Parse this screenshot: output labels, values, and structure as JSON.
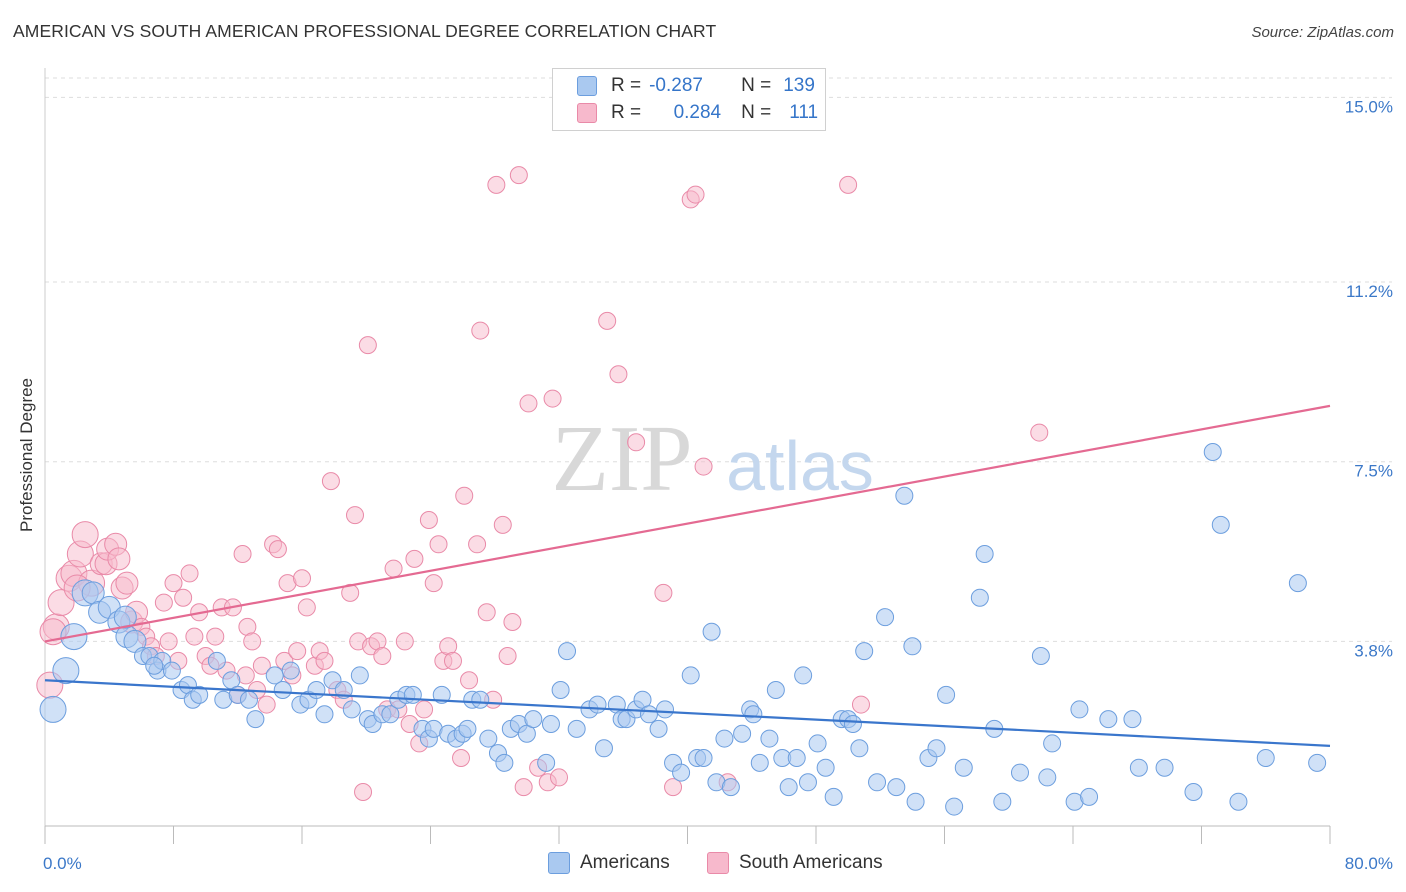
{
  "title": "AMERICAN VS SOUTH AMERICAN PROFESSIONAL DEGREE CORRELATION CHART",
  "source": "Source: ZipAtlas.com",
  "watermark": {
    "zip": "ZIP",
    "atlas": "atlas"
  },
  "legend": {
    "row1": {
      "r_label": "R =",
      "r_value": "-0.287",
      "n_label": "N =",
      "n_value": "139"
    },
    "row2": {
      "r_label": "R =",
      "r_value": "0.284",
      "n_label": "N =",
      "n_value": "111"
    }
  },
  "colors": {
    "blue_fill": "#aac9f0",
    "blue_stroke": "#6c9ede",
    "blue_line": "#3a76cc",
    "pink_fill": "#f7b9cc",
    "pink_stroke": "#e98aa8",
    "pink_line": "#e46a92",
    "tick_text": "#3b78c8",
    "grid": "#dddddd"
  },
  "chart_data": {
    "type": "scatter",
    "title": "AMERICAN VS SOUTH AMERICAN PROFESSIONAL DEGREE CORRELATION CHART",
    "xlabel": "",
    "ylabel": "Professional Degree",
    "xlim": [
      0,
      80
    ],
    "ylim": [
      0,
      15.4
    ],
    "x_tick_labels": [
      {
        "value": 0,
        "label": "0.0%"
      },
      {
        "value": 80,
        "label": "80.0%"
      }
    ],
    "y_tick_labels": [
      {
        "value": 3.8,
        "label": "3.8%"
      },
      {
        "value": 7.5,
        "label": "7.5%"
      },
      {
        "value": 11.2,
        "label": "11.2%"
      },
      {
        "value": 15.0,
        "label": "15.0%"
      }
    ],
    "grid": true,
    "legend_position": "top-center",
    "series": [
      {
        "name": "Americans",
        "color": "#aac9f0",
        "r": -0.287,
        "n": 139,
        "trend": {
          "x": [
            0,
            80
          ],
          "y": [
            3.0,
            1.65
          ]
        },
        "points": [
          [
            0.5,
            2.4
          ],
          [
            1.3,
            3.2
          ],
          [
            1.8,
            3.9
          ],
          [
            2.5,
            4.8
          ],
          [
            3.0,
            4.8
          ],
          [
            3.4,
            4.4
          ],
          [
            4.0,
            4.5
          ],
          [
            4.6,
            4.2
          ],
          [
            5.1,
            3.9
          ],
          [
            5.6,
            3.8
          ],
          [
            6.1,
            3.5
          ],
          [
            6.5,
            3.5
          ],
          [
            7.0,
            3.2
          ],
          [
            7.3,
            3.4
          ],
          [
            7.9,
            3.2
          ],
          [
            8.5,
            2.8
          ],
          [
            8.9,
            2.9
          ],
          [
            9.2,
            2.6
          ],
          [
            9.6,
            2.7
          ],
          [
            10.7,
            3.4
          ],
          [
            11.1,
            2.6
          ],
          [
            11.6,
            3.0
          ],
          [
            12.0,
            2.7
          ],
          [
            12.7,
            2.6
          ],
          [
            13.1,
            2.2
          ],
          [
            14.3,
            3.1
          ],
          [
            14.8,
            2.8
          ],
          [
            15.3,
            3.2
          ],
          [
            15.9,
            2.5
          ],
          [
            16.4,
            2.6
          ],
          [
            16.9,
            2.8
          ],
          [
            17.4,
            2.3
          ],
          [
            17.9,
            3.0
          ],
          [
            18.6,
            2.8
          ],
          [
            19.1,
            2.4
          ],
          [
            19.6,
            3.1
          ],
          [
            20.1,
            2.2
          ],
          [
            20.4,
            2.1
          ],
          [
            21.0,
            2.3
          ],
          [
            21.5,
            2.3
          ],
          [
            22.0,
            2.6
          ],
          [
            22.5,
            2.7
          ],
          [
            22.9,
            2.7
          ],
          [
            23.5,
            2.0
          ],
          [
            23.9,
            1.8
          ],
          [
            24.2,
            2.0
          ],
          [
            24.7,
            2.7
          ],
          [
            25.1,
            1.9
          ],
          [
            25.6,
            1.8
          ],
          [
            26.0,
            1.9
          ],
          [
            26.3,
            2.0
          ],
          [
            26.6,
            2.6
          ],
          [
            27.1,
            2.6
          ],
          [
            27.6,
            1.8
          ],
          [
            28.2,
            1.5
          ],
          [
            28.6,
            1.3
          ],
          [
            29.0,
            2.0
          ],
          [
            29.5,
            2.1
          ],
          [
            30.0,
            1.9
          ],
          [
            30.4,
            2.2
          ],
          [
            31.2,
            1.3
          ],
          [
            31.5,
            2.1
          ],
          [
            32.1,
            2.8
          ],
          [
            32.5,
            3.6
          ],
          [
            33.1,
            2.0
          ],
          [
            33.9,
            2.4
          ],
          [
            34.4,
            2.5
          ],
          [
            34.8,
            1.6
          ],
          [
            35.6,
            2.5
          ],
          [
            35.9,
            2.2
          ],
          [
            36.2,
            2.2
          ],
          [
            36.8,
            2.4
          ],
          [
            37.2,
            2.6
          ],
          [
            37.6,
            2.3
          ],
          [
            38.2,
            2.0
          ],
          [
            38.6,
            2.4
          ],
          [
            39.1,
            1.3
          ],
          [
            39.6,
            1.1
          ],
          [
            40.2,
            3.1
          ],
          [
            40.6,
            1.4
          ],
          [
            41.0,
            1.4
          ],
          [
            41.5,
            4.0
          ],
          [
            41.8,
            0.9
          ],
          [
            42.3,
            1.8
          ],
          [
            42.7,
            0.8
          ],
          [
            43.4,
            1.9
          ],
          [
            43.9,
            2.4
          ],
          [
            44.1,
            2.3
          ],
          [
            44.5,
            1.3
          ],
          [
            45.1,
            1.8
          ],
          [
            45.5,
            2.8
          ],
          [
            45.9,
            1.4
          ],
          [
            46.3,
            0.8
          ],
          [
            46.8,
            1.4
          ],
          [
            47.2,
            3.1
          ],
          [
            47.5,
            0.9
          ],
          [
            48.1,
            1.7
          ],
          [
            48.6,
            1.2
          ],
          [
            49.1,
            0.6
          ],
          [
            49.6,
            2.2
          ],
          [
            50.0,
            2.2
          ],
          [
            50.3,
            2.1
          ],
          [
            50.7,
            1.6
          ],
          [
            51.0,
            3.6
          ],
          [
            51.8,
            0.9
          ],
          [
            52.3,
            4.3
          ],
          [
            53.0,
            0.8
          ],
          [
            53.5,
            6.8
          ],
          [
            54.0,
            3.7
          ],
          [
            54.2,
            0.5
          ],
          [
            55.0,
            1.4
          ],
          [
            55.5,
            1.6
          ],
          [
            56.1,
            2.7
          ],
          [
            56.6,
            0.4
          ],
          [
            57.2,
            1.2
          ],
          [
            58.5,
            5.6
          ],
          [
            58.2,
            4.7
          ],
          [
            59.1,
            2.0
          ],
          [
            59.6,
            0.5
          ],
          [
            60.7,
            1.1
          ],
          [
            62.0,
            3.5
          ],
          [
            62.4,
            1.0
          ],
          [
            62.7,
            1.7
          ],
          [
            64.1,
            0.5
          ],
          [
            64.4,
            2.4
          ],
          [
            65.0,
            0.6
          ],
          [
            66.2,
            2.2
          ],
          [
            67.7,
            2.2
          ],
          [
            68.1,
            1.2
          ],
          [
            69.7,
            1.2
          ],
          [
            71.5,
            0.7
          ],
          [
            72.7,
            7.7
          ],
          [
            73.2,
            6.2
          ],
          [
            74.3,
            0.5
          ],
          [
            76.0,
            1.4
          ],
          [
            78.0,
            5.0
          ],
          [
            79.2,
            1.3
          ],
          [
            5.0,
            4.3
          ],
          [
            6.8,
            3.3
          ]
        ]
      },
      {
        "name": "South Americans",
        "color": "#f7b9cc",
        "r": 0.284,
        "n": 111,
        "trend": {
          "x": [
            0,
            80
          ],
          "y": [
            3.8,
            8.65
          ]
        },
        "points": [
          [
            0.3,
            2.9
          ],
          [
            0.7,
            4.1
          ],
          [
            1.0,
            4.6
          ],
          [
            1.5,
            5.1
          ],
          [
            1.8,
            5.2
          ],
          [
            2.2,
            5.6
          ],
          [
            2.5,
            6.0
          ],
          [
            2.9,
            5.0
          ],
          [
            3.5,
            5.4
          ],
          [
            3.8,
            5.4
          ],
          [
            3.9,
            5.7
          ],
          [
            4.4,
            5.8
          ],
          [
            4.6,
            5.5
          ],
          [
            4.8,
            4.9
          ],
          [
            5.1,
            5.0
          ],
          [
            5.4,
            4.2
          ],
          [
            5.7,
            4.4
          ],
          [
            6.0,
            4.1
          ],
          [
            6.3,
            3.9
          ],
          [
            6.6,
            3.7
          ],
          [
            6.9,
            3.5
          ],
          [
            7.4,
            4.6
          ],
          [
            7.7,
            3.8
          ],
          [
            8.0,
            5.0
          ],
          [
            8.3,
            3.4
          ],
          [
            8.6,
            4.7
          ],
          [
            9.0,
            5.2
          ],
          [
            9.3,
            3.9
          ],
          [
            9.6,
            4.4
          ],
          [
            10.0,
            3.5
          ],
          [
            10.3,
            3.3
          ],
          [
            10.6,
            3.9
          ],
          [
            11.0,
            4.5
          ],
          [
            11.3,
            3.2
          ],
          [
            11.7,
            4.5
          ],
          [
            12.0,
            2.7
          ],
          [
            12.3,
            5.6
          ],
          [
            12.6,
            4.1
          ],
          [
            12.9,
            3.8
          ],
          [
            13.2,
            2.8
          ],
          [
            13.5,
            3.3
          ],
          [
            13.8,
            2.5
          ],
          [
            14.2,
            5.8
          ],
          [
            14.5,
            5.7
          ],
          [
            14.9,
            3.4
          ],
          [
            15.1,
            5.0
          ],
          [
            15.4,
            3.1
          ],
          [
            15.7,
            3.6
          ],
          [
            16.0,
            5.1
          ],
          [
            16.3,
            4.5
          ],
          [
            16.8,
            3.3
          ],
          [
            17.1,
            3.6
          ],
          [
            17.4,
            3.4
          ],
          [
            17.8,
            7.1
          ],
          [
            18.2,
            2.8
          ],
          [
            18.6,
            2.6
          ],
          [
            19.0,
            4.8
          ],
          [
            19.3,
            6.4
          ],
          [
            19.5,
            3.8
          ],
          [
            19.8,
            0.7
          ],
          [
            20.1,
            9.9
          ],
          [
            20.3,
            3.7
          ],
          [
            20.7,
            3.8
          ],
          [
            21.0,
            3.5
          ],
          [
            21.3,
            2.4
          ],
          [
            21.7,
            5.3
          ],
          [
            22.0,
            2.4
          ],
          [
            22.4,
            3.8
          ],
          [
            22.7,
            2.1
          ],
          [
            23.0,
            5.5
          ],
          [
            23.3,
            1.7
          ],
          [
            23.6,
            2.4
          ],
          [
            23.9,
            6.3
          ],
          [
            24.2,
            5.0
          ],
          [
            24.5,
            5.8
          ],
          [
            24.8,
            3.4
          ],
          [
            25.1,
            3.7
          ],
          [
            25.4,
            3.4
          ],
          [
            25.9,
            1.4
          ],
          [
            26.1,
            6.8
          ],
          [
            26.4,
            3.0
          ],
          [
            26.9,
            5.8
          ],
          [
            27.1,
            10.2
          ],
          [
            27.5,
            4.4
          ],
          [
            27.9,
            2.6
          ],
          [
            28.1,
            13.2
          ],
          [
            28.5,
            6.2
          ],
          [
            28.8,
            3.5
          ],
          [
            29.1,
            4.2
          ],
          [
            29.5,
            13.4
          ],
          [
            29.8,
            0.8
          ],
          [
            30.1,
            8.7
          ],
          [
            30.7,
            1.2
          ],
          [
            31.3,
            0.9
          ],
          [
            31.6,
            8.8
          ],
          [
            32.0,
            1.0
          ],
          [
            35.0,
            10.4
          ],
          [
            35.7,
            9.3
          ],
          [
            36.8,
            7.9
          ],
          [
            38.5,
            4.8
          ],
          [
            39.1,
            0.8
          ],
          [
            40.2,
            12.9
          ],
          [
            40.5,
            13.0
          ],
          [
            41.0,
            7.4
          ],
          [
            42.5,
            0.9
          ],
          [
            50.0,
            13.2
          ],
          [
            50.8,
            2.5
          ],
          [
            61.9,
            8.1
          ],
          [
            12.5,
            3.1
          ],
          [
            2.0,
            4.9
          ],
          [
            0.5,
            4.0
          ]
        ]
      }
    ]
  },
  "bottom_legend": {
    "blue_label": "Americans",
    "pink_label": "South Americans"
  }
}
